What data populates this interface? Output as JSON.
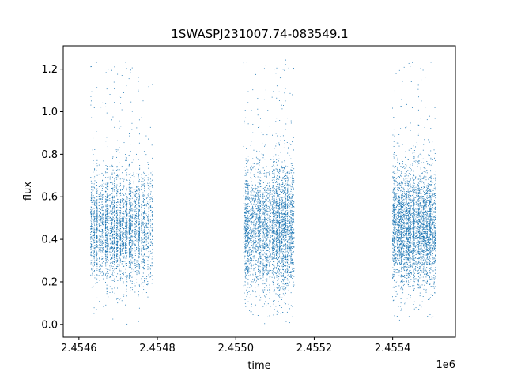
{
  "chart_data": {
    "type": "scatter",
    "title": "1SWASPJ231007.74-083549.1",
    "xlabel": "time",
    "ylabel": "flux",
    "x_offset_label": "1e6",
    "xlim": [
      2454560,
      2455560
    ],
    "ylim": [
      -0.06,
      1.31
    ],
    "x_ticks": [
      2454600,
      2454800,
      2455000,
      2455200,
      2455400
    ],
    "x_tick_labels": [
      "2.4546",
      "2.4548",
      "2.4550",
      "2.4552",
      "2.4554"
    ],
    "y_ticks": [
      0.0,
      0.2,
      0.4,
      0.6,
      0.8,
      1.0,
      1.2
    ],
    "y_tick_labels": [
      "0.0",
      "0.2",
      "0.4",
      "0.6",
      "0.8",
      "1.0",
      "1.2"
    ],
    "grid": false,
    "point_color": "#1f77b4",
    "series": [
      {
        "observing_seasons": [
          {
            "time_range": [
              2454630,
              2454790
            ],
            "flux_median": 0.45,
            "flux_spread": 0.13,
            "flux_min": 0.0,
            "flux_max": 1.24
          },
          {
            "time_range": [
              2455020,
              2455150
            ],
            "flux_median": 0.45,
            "flux_spread": 0.15,
            "flux_min": 0.0,
            "flux_max": 1.25
          },
          {
            "time_range": [
              2455400,
              2455510
            ],
            "flux_median": 0.45,
            "flux_spread": 0.14,
            "flux_min": 0.0,
            "flux_max": 1.24
          }
        ]
      }
    ]
  }
}
